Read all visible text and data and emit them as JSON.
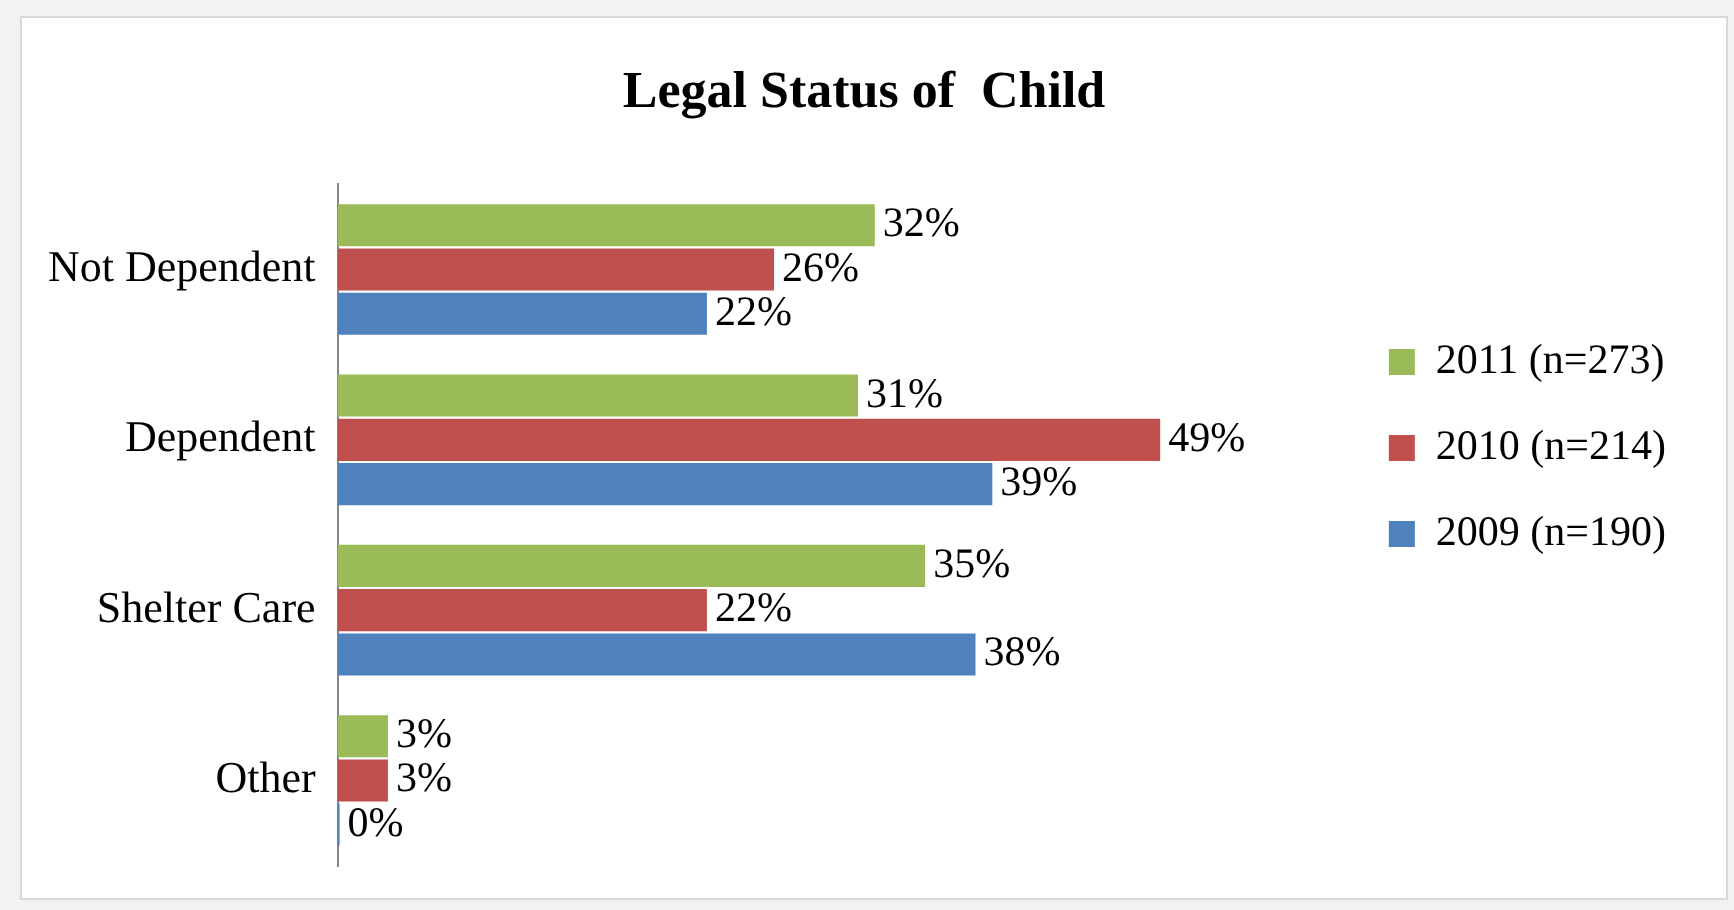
{
  "chart_data": {
    "type": "bar",
    "orientation": "horizontal",
    "title": "Legal Status of  Child",
    "categories": [
      "Not Dependent",
      "Dependent",
      "Shelter Care",
      "Other"
    ],
    "series": [
      {
        "name": "2011 (n=273)",
        "color": "#9bbb59",
        "values": [
          32,
          31,
          35,
          3
        ],
        "value_labels": [
          "32%",
          "31%",
          "35%",
          "3%"
        ]
      },
      {
        "name": "2010 (n=214)",
        "color": "#c0504d",
        "values": [
          26,
          49,
          22,
          3
        ],
        "value_labels": [
          "26%",
          "49%",
          "22%",
          "3%"
        ]
      },
      {
        "name": "2009 (n=190)",
        "color": "#4f81bd",
        "values": [
          22,
          39,
          38,
          0
        ],
        "value_labels": [
          "22%",
          "39%",
          "38%",
          "0%"
        ]
      }
    ],
    "legend": "right",
    "tick_labels": "y"
  }
}
